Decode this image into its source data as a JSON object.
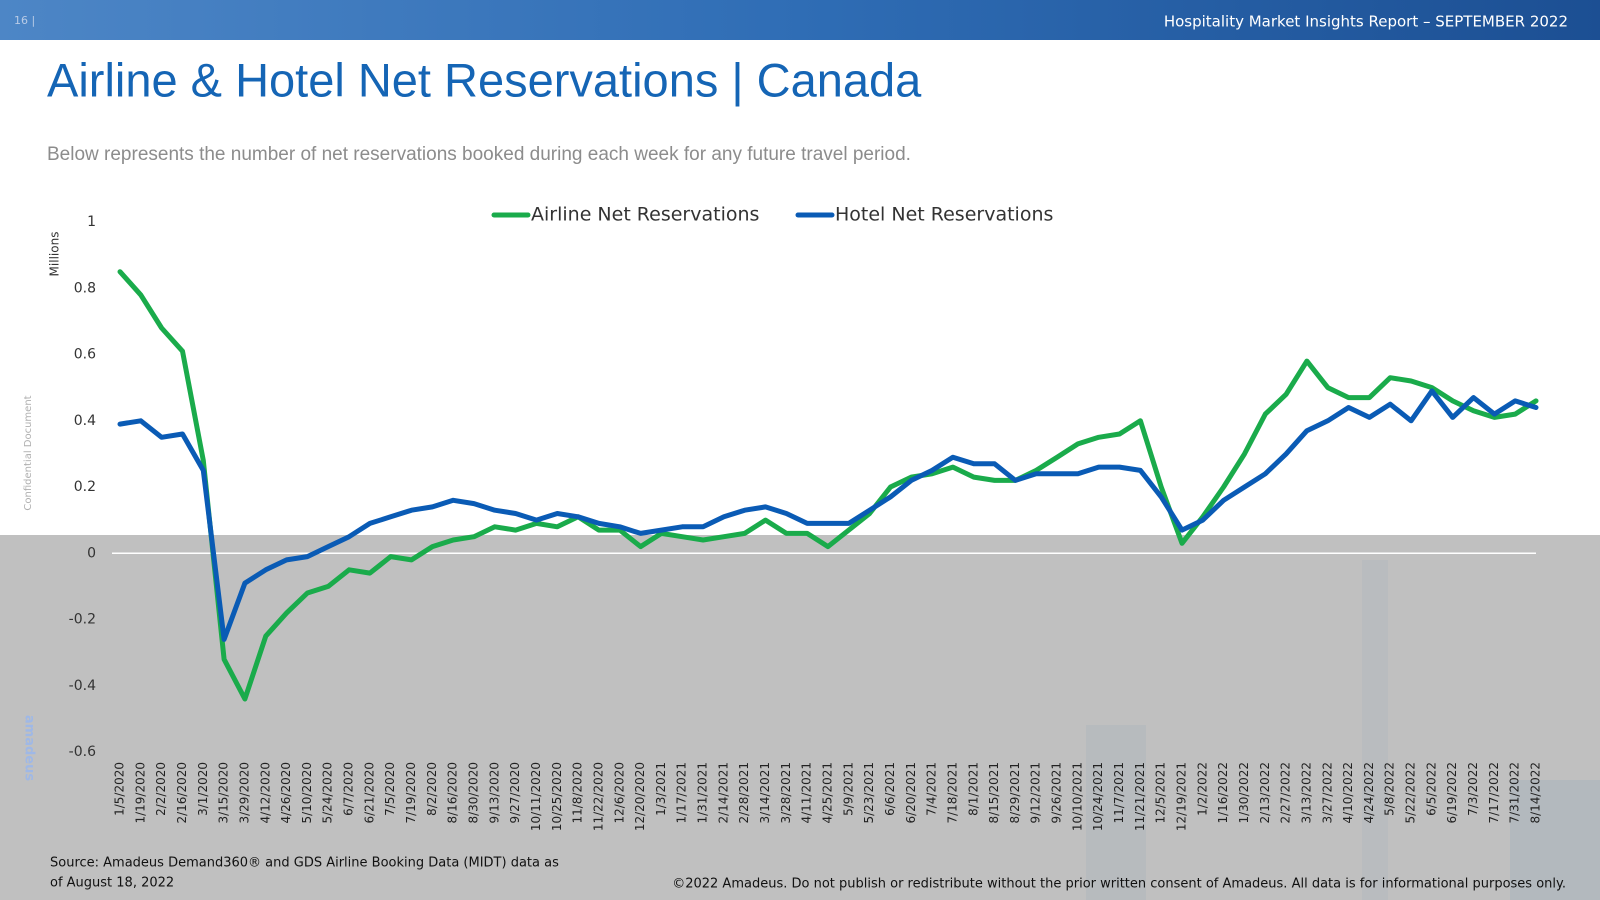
{
  "header": {
    "page_number": "16 |",
    "report": "Hospitality Market Insights Report – SEPTEMBER 2022"
  },
  "side_note": "Confidential Document",
  "logo": "amadeus",
  "source": [
    "Source: Amadeus Demand360® and GDS Airline Booking Data (MIDT) data as",
    "of August 18, 2022"
  ],
  "copyright": "©2022 Amadeus. Do not publish or redistribute without the prior written consent of Amadeus. All data is for informational purposes only.",
  "chart_data": {
    "type": "line",
    "title": "Airline & Hotel Net Reservations | Canada",
    "subtitle": "Below represents the number of net reservations booked during each week for any future travel period.",
    "y_label": "Millions",
    "categories": [
      "1/5/2020",
      "1/19/2020",
      "2/2/2020",
      "2/16/2020",
      "3/1/2020",
      "3/15/2020",
      "3/29/2020",
      "4/12/2020",
      "4/26/2020",
      "5/10/2020",
      "5/24/2020",
      "6/7/2020",
      "6/21/2020",
      "7/5/2020",
      "7/19/2020",
      "8/2/2020",
      "8/16/2020",
      "8/30/2020",
      "9/13/2020",
      "9/27/2020",
      "10/11/2020",
      "10/25/2020",
      "11/8/2020",
      "11/22/2020",
      "12/6/2020",
      "12/20/2020",
      "1/3/2021",
      "1/17/2021",
      "1/31/2021",
      "2/14/2021",
      "2/28/2021",
      "3/14/2021",
      "3/28/2021",
      "4/11/2021",
      "4/25/2021",
      "5/9/2021",
      "5/23/2021",
      "6/6/2021",
      "6/20/2021",
      "7/4/2021",
      "7/18/2021",
      "8/1/2021",
      "8/15/2021",
      "8/29/2021",
      "9/12/2021",
      "9/26/2021",
      "10/10/2021",
      "10/24/2021",
      "11/7/2021",
      "11/21/2021",
      "12/5/2021",
      "12/19/2021",
      "1/2/2022",
      "1/16/2022",
      "1/30/2022",
      "2/13/2022",
      "2/27/2022",
      "3/13/2022",
      "3/27/2022",
      "4/10/2022",
      "4/24/2022",
      "5/8/2022",
      "5/22/2022",
      "6/5/2022",
      "6/19/2022",
      "7/3/2022",
      "7/17/2022",
      "7/31/2022",
      "8/14/2022"
    ],
    "series": [
      {
        "name": "Airline Net Reservations",
        "color": "#1aab4b",
        "values": [
          0.85,
          0.78,
          0.68,
          0.61,
          0.28,
          -0.32,
          -0.44,
          -0.25,
          -0.18,
          -0.12,
          -0.1,
          -0.05,
          -0.06,
          -0.01,
          -0.02,
          0.02,
          0.04,
          0.05,
          0.08,
          0.07,
          0.09,
          0.08,
          0.11,
          0.07,
          0.07,
          0.02,
          0.06,
          0.05,
          0.04,
          0.05,
          0.06,
          0.1,
          0.06,
          0.06,
          0.02,
          0.07,
          0.12,
          0.2,
          0.23,
          0.24,
          0.26,
          0.23,
          0.22,
          0.22,
          0.25,
          0.29,
          0.33,
          0.35,
          0.36,
          0.4,
          0.2,
          0.03,
          0.11,
          0.2,
          0.3,
          0.42,
          0.48,
          0.58,
          0.5,
          0.47,
          0.47,
          0.53,
          0.52,
          0.5,
          0.46,
          0.43,
          0.41,
          0.42,
          0.46
        ]
      },
      {
        "name": "Hotel Net Reservations",
        "color": "#0a5bb5",
        "values": [
          0.39,
          0.4,
          0.35,
          0.36,
          0.25,
          -0.26,
          -0.09,
          -0.05,
          -0.02,
          -0.01,
          0.02,
          0.05,
          0.09,
          0.11,
          0.13,
          0.14,
          0.16,
          0.15,
          0.13,
          0.12,
          0.1,
          0.12,
          0.11,
          0.09,
          0.08,
          0.06,
          0.07,
          0.08,
          0.08,
          0.11,
          0.13,
          0.14,
          0.12,
          0.09,
          0.09,
          0.09,
          0.13,
          0.17,
          0.22,
          0.25,
          0.29,
          0.27,
          0.27,
          0.22,
          0.24,
          0.24,
          0.24,
          0.26,
          0.26,
          0.25,
          0.17,
          0.07,
          0.1,
          0.16,
          0.2,
          0.24,
          0.3,
          0.37,
          0.4,
          0.44,
          0.41,
          0.45,
          0.4,
          0.49,
          0.41,
          0.47,
          0.42,
          0.46,
          0.44
        ]
      }
    ],
    "ylim": [
      -0.6,
      1
    ],
    "yticks": [
      1,
      0.8,
      0.6,
      0.4,
      0.2,
      0,
      -0.2,
      -0.4,
      -0.6
    ],
    "grid": false,
    "legend": "top"
  }
}
